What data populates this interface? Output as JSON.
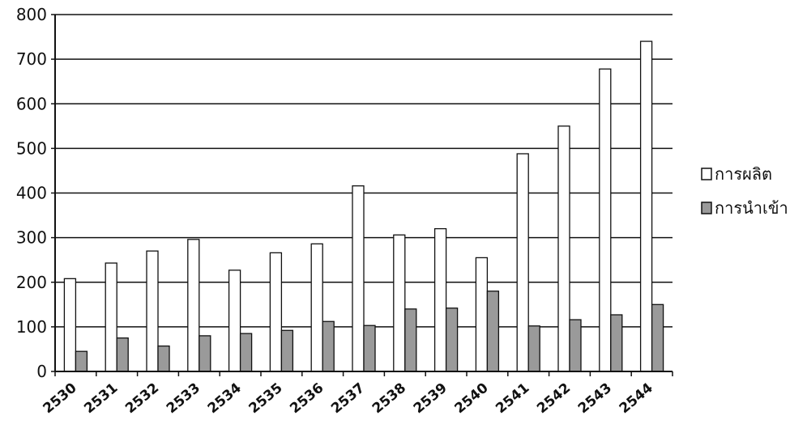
{
  "chart_data": {
    "type": "bar",
    "title": "",
    "xlabel": "",
    "ylabel": "",
    "ylim": [
      0,
      800
    ],
    "yticks": [
      0,
      100,
      200,
      300,
      400,
      500,
      600,
      700,
      800
    ],
    "grid": true,
    "legend_position": "right",
    "categories": [
      "2530",
      "2531",
      "2532",
      "2533",
      "2534",
      "2535",
      "2536",
      "2537",
      "2538",
      "2539",
      "2540",
      "2541",
      "2542",
      "2543",
      "2544"
    ],
    "series": [
      {
        "name": "การผลิต",
        "color": "#ffffff",
        "values": [
          208,
          243,
          270,
          296,
          227,
          266,
          286,
          416,
          306,
          320,
          255,
          488,
          550,
          678,
          740
        ]
      },
      {
        "name": "การนำเข้า",
        "color": "#9a9a9a",
        "values": [
          45,
          75,
          57,
          80,
          85,
          92,
          112,
          103,
          140,
          142,
          180,
          102,
          116,
          127,
          150
        ]
      }
    ]
  }
}
